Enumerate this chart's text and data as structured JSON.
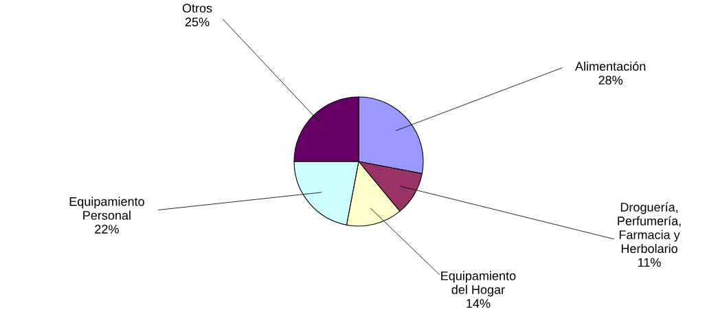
{
  "chart_data": {
    "type": "pie",
    "categories": [
      "Alimentación",
      "Droguería,\nPerfumería,\nFarmacia y\nHerbolario",
      "Equipamiento\ndel Hogar",
      "Equipamiento\nPersonal",
      "Otros"
    ],
    "values": [
      28,
      11,
      14,
      22,
      25
    ],
    "colors": [
      "#9999ff",
      "#993366",
      "#ffffcc",
      "#ccffff",
      "#660066"
    ],
    "value_labels": [
      "28%",
      "11%",
      "14%",
      "22%",
      "25%"
    ]
  }
}
